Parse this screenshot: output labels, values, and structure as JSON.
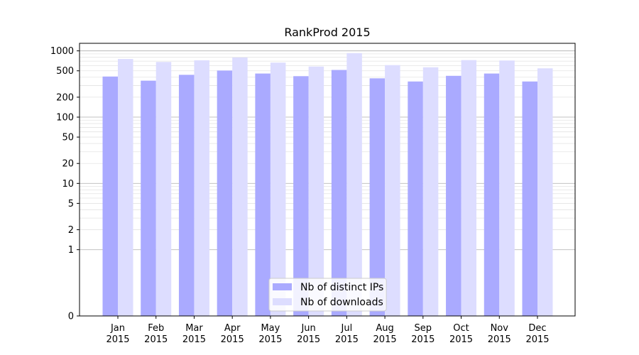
{
  "chart_data": {
    "type": "bar",
    "title": "RankProd 2015",
    "xlabel": "",
    "ylabel": "",
    "y_scale": "symlog",
    "ylim": [
      0,
      1300
    ],
    "yticks": [
      0,
      1,
      2,
      5,
      10,
      20,
      50,
      100,
      200,
      500,
      1000
    ],
    "grid": true,
    "legend_position": "bottom-center",
    "categories": [
      "Jan\n2015",
      "Feb\n2015",
      "Mar\n2015",
      "Apr\n2015",
      "May\n2015",
      "Jun\n2015",
      "Jul\n2015",
      "Aug\n2015",
      "Sep\n2015",
      "Oct\n2015",
      "Nov\n2015",
      "Dec\n2015"
    ],
    "series": [
      {
        "name": "Nb of distinct IPs",
        "color": "#aaaaff",
        "values": [
          410,
          355,
          435,
          505,
          455,
          415,
          515,
          385,
          345,
          420,
          455,
          345
        ]
      },
      {
        "name": "Nb of downloads",
        "color": "#ddddff",
        "values": [
          755,
          680,
          720,
          795,
          665,
          580,
          925,
          610,
          565,
          725,
          715,
          545
        ]
      }
    ]
  }
}
